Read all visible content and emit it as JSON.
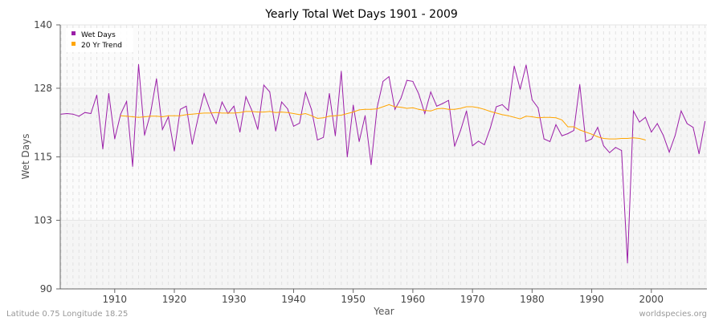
{
  "chart_data": {
    "type": "line",
    "title": "Yearly Total Wet Days 1901 - 2009",
    "xlabel": "Year",
    "ylabel": "Wet Days",
    "xlim": [
      1901,
      2009
    ],
    "ylim": [
      90,
      140
    ],
    "yticks": [
      90,
      103,
      115,
      128,
      140
    ],
    "xticks": [
      1910,
      1920,
      1930,
      1940,
      1950,
      1960,
      1970,
      1980,
      1990,
      2000
    ],
    "grid": true,
    "legend_position": "top-left",
    "series": [
      {
        "name": "Wet Days",
        "color": "#9b1fa8",
        "x_start": 1901,
        "values": [
          123.1,
          123.2,
          123.1,
          122.7,
          123.4,
          123.2,
          126.7,
          116.5,
          127.0,
          118.4,
          123.1,
          125.5,
          113.2,
          132.5,
          119.1,
          123.2,
          129.8,
          120.2,
          122.6,
          116.1,
          124.0,
          124.6,
          117.4,
          122.5,
          127.0,
          123.8,
          121.3,
          125.4,
          123.2,
          124.6,
          119.7,
          126.4,
          123.8,
          120.2,
          128.6,
          127.3,
          119.9,
          125.4,
          124.1,
          120.8,
          121.4,
          127.2,
          124.0,
          118.2,
          118.7,
          127.0,
          119.0,
          131.2,
          115.0,
          124.8,
          117.9,
          122.8,
          113.5,
          124.3,
          129.3,
          130.2,
          124.0,
          126.1,
          129.5,
          129.3,
          126.9,
          123.2,
          127.3,
          124.6,
          125.1,
          125.7,
          117.0,
          120.0,
          123.7,
          117.1,
          118.0,
          117.3,
          120.5,
          124.5,
          124.9,
          123.8,
          132.2,
          127.8,
          132.4,
          125.8,
          124.3,
          118.4,
          117.9,
          121.1,
          119.0,
          119.4,
          120.0,
          128.7,
          117.9,
          118.4,
          120.6,
          117.1,
          115.8,
          116.8,
          116.2,
          94.9,
          123.7,
          121.6,
          122.5,
          119.7,
          121.3,
          119.1,
          115.9,
          119.1,
          123.7,
          121.3,
          120.6,
          115.6,
          121.7
        ]
      },
      {
        "name": "20 Yr Trend",
        "color": "#ffa500",
        "x_start": 1911,
        "values": [
          122.8,
          122.7,
          122.6,
          122.5,
          122.6,
          122.7,
          122.7,
          122.6,
          122.8,
          122.8,
          122.8,
          123.0,
          123.1,
          123.2,
          123.3,
          123.3,
          123.4,
          123.3,
          123.3,
          123.3,
          123.4,
          123.6,
          123.6,
          123.5,
          123.5,
          123.6,
          123.4,
          123.5,
          123.4,
          123.2,
          123.0,
          123.2,
          122.8,
          122.3,
          122.4,
          122.7,
          122.8,
          122.9,
          123.2,
          123.5,
          123.9,
          124.0,
          124.0,
          124.1,
          124.5,
          124.9,
          124.5,
          124.4,
          124.2,
          124.3,
          124.0,
          123.8,
          123.7,
          124.1,
          124.2,
          124.0,
          124.0,
          124.2,
          124.5,
          124.5,
          124.3,
          124.0,
          123.6,
          123.3,
          123.0,
          122.8,
          122.5,
          122.2,
          122.7,
          122.6,
          122.4,
          122.5,
          122.5,
          122.4,
          122.0,
          120.7,
          120.7,
          120.1,
          119.7,
          119.3,
          118.8,
          118.5,
          118.4,
          118.4,
          118.5,
          118.5,
          118.6,
          118.5,
          118.2
        ]
      }
    ]
  },
  "footer": {
    "left": "Latitude 0.75 Longitude 18.25",
    "right": "worldspecies.org"
  }
}
